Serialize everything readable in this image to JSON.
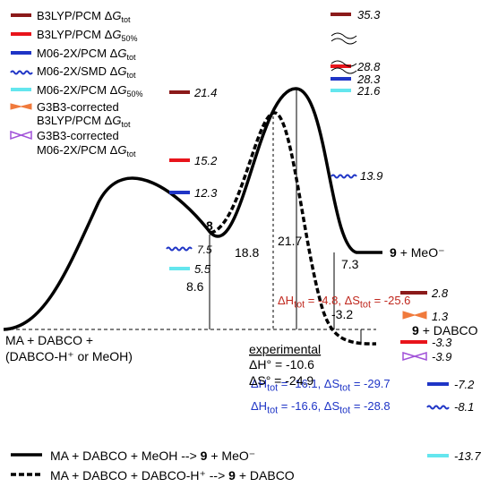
{
  "legend": {
    "items": [
      {
        "method": "B3LYP/PCM",
        "symbol": "Δ",
        "g": "G",
        "sub": "tot",
        "color": "#8b1a1a",
        "style": "bar"
      },
      {
        "method": "B3LYP/PCM",
        "symbol": "Δ",
        "g": "G",
        "sub": "50%",
        "color": "#e8141b",
        "style": "bar"
      },
      {
        "method": "M06-2X/PCM",
        "symbol": "Δ",
        "g": "G",
        "sub": "tot",
        "color": "#1f35c6",
        "style": "bar"
      },
      {
        "method": "M06-2X/SMD",
        "symbol": "Δ",
        "g": "G",
        "sub": "tot",
        "color": "#1f35c6",
        "style": "wavy"
      },
      {
        "method": "M06-2X/PCM",
        "symbol": "Δ",
        "g": "G",
        "sub": "50%",
        "color": "#64e6ee",
        "style": "bar"
      }
    ],
    "g3b3_a": {
      "line1": "G3B3-corrected",
      "line2": "B3LYP/PCM",
      "symbol": "Δ",
      "g": "G",
      "sub": "tot",
      "color": "#f07a3c"
    },
    "g3b3_b": {
      "line1": "G3B3-corrected",
      "line2": "M06-2X/PCM",
      "symbol": "Δ",
      "g": "G",
      "sub": "tot",
      "color": "#a050d8"
    }
  },
  "energy_levels": [
    {
      "value": "21.4",
      "color": "#8b1a1a",
      "style": "bar"
    },
    {
      "value": "15.2",
      "color": "#e8141b",
      "style": "bar"
    },
    {
      "value": "12.3",
      "color": "#1f35c6",
      "style": "bar"
    },
    {
      "value": "7.5",
      "color": "#1f35c6",
      "style": "wavy"
    },
    {
      "value": "5.5",
      "color": "#64e6ee",
      "style": "bar"
    },
    {
      "value": "35.3",
      "color": "#8b1a1a",
      "style": "bar"
    },
    {
      "value": "28.8",
      "color": "#e8141b",
      "style": "bar"
    },
    {
      "value": "28.3",
      "color": "#1f35c6",
      "style": "bar"
    },
    {
      "value": "21.6",
      "color": "#64e6ee",
      "style": "bar"
    },
    {
      "value": "13.9",
      "color": "#1f35c6",
      "style": "wavy"
    },
    {
      "value": "2.8",
      "color": "#8b1a1a",
      "style": "bar"
    },
    {
      "value": "1.3",
      "color": "#f07a3c",
      "style": "bowtie"
    },
    {
      "value": "-3.3",
      "color": "#e8141b",
      "style": "bar"
    },
    {
      "value": "-3.9",
      "color": "#a050d8",
      "style": "bowtie"
    },
    {
      "value": "-7.2",
      "color": "#1f35c6",
      "style": "bar"
    },
    {
      "value": "-8.1",
      "color": "#1f35c6",
      "style": "wavy"
    },
    {
      "value": "-13.7",
      "color": "#64e6ee",
      "style": "bar"
    }
  ],
  "labels": {
    "intermediate_num": "8",
    "product_num": "9",
    "product_meo": "+ MeO⁻",
    "product_dabco": "+ DABCO",
    "reactants_line1": "MA + DABCO +",
    "reactants_line2": "(DABCO-H⁺ or MeOH)"
  },
  "gaps": {
    "g1": "8.6",
    "g2": "18.8",
    "g3": "21.7",
    "g4": "7.3",
    "g5": "-3.2"
  },
  "thermo": {
    "b3lyp": "ΔH<sub>tot</sub> = -4.8, ΔS<sub>tot</sub> = -25.6",
    "m06_pcm": "ΔH<sub>tot</sub> = -16.1, ΔS<sub>tot</sub> = -29.7",
    "m06_smd": "ΔH<sub>tot</sub> = -16.6, ΔS<sub>tot</sub> = -28.8"
  },
  "experimental": {
    "title": "experimental",
    "dh": "ΔH° = -10.6",
    "ds": "ΔS° = -24.9"
  },
  "bottom_legend": {
    "solid": {
      "prefix": "MA + DABCO + MeOH --> ",
      "num": "9",
      "suffix": " + MeO⁻"
    },
    "dashed": {
      "prefix": "MA + DABCO + DABCO-H⁺ --> ",
      "num": "9",
      "suffix": " + DABCO"
    }
  }
}
